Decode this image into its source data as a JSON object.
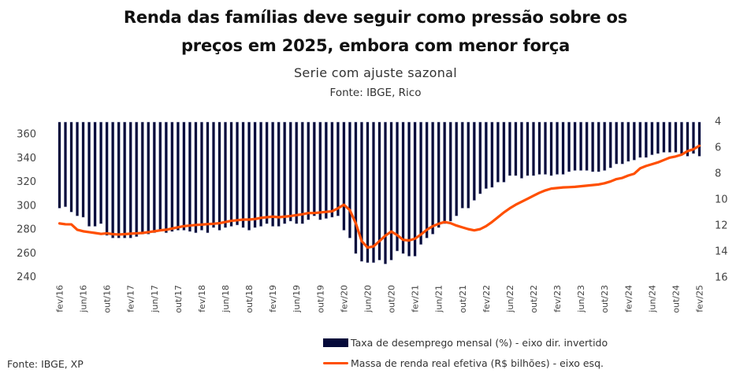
{
  "header": {
    "title_line1": "Renda das famílias deve seguir como pressão sobre os",
    "title_line2": "preços em 2025, embora com menor força",
    "subtitle": "Serie com ajuste sazonal",
    "source_top": "Fonte: IBGE, Rico"
  },
  "footer": {
    "source": "Fonte: IBGE, XP"
  },
  "colors": {
    "bars": "#050a3a",
    "line": "#ff4f00"
  },
  "chart_data": {
    "type": "bar+line",
    "title": "Renda das famílias deve seguir como pressão sobre os preços em 2025, embora com menor força",
    "subtitle": "Serie com ajuste sazonal",
    "x_start": "fev/16",
    "x_end": "fev/25",
    "frequency": "monthly",
    "xtick_labels": [
      "fev/16",
      "jun/16",
      "out/16",
      "fev/17",
      "jun/17",
      "out/17",
      "fev/18",
      "jun/18",
      "out/18",
      "fev/19",
      "jun/19",
      "out/19",
      "fev/20",
      "jun/20",
      "out/20",
      "fev/21",
      "jun/21",
      "out/21",
      "fev/22",
      "jun/22",
      "out/22",
      "fev/23",
      "jun/23",
      "out/23",
      "fev/24",
      "jun/24",
      "out/24",
      "fev/25"
    ],
    "y_left": {
      "ticks": [
        "240",
        "260",
        "280",
        "300",
        "320",
        "340",
        "360"
      ],
      "range": [
        240,
        360
      ]
    },
    "y_right": {
      "ticks": [
        "4",
        "6",
        "8",
        "10",
        "12",
        "14",
        "16"
      ],
      "range": [
        4,
        16
      ],
      "inverted": true
    },
    "legend_position": "bottom-center",
    "series": [
      {
        "name": "Taxa de desemprego mensal (%) - eixo dir. invertido",
        "type": "bar",
        "axis": "right",
        "values": [
          10.7,
          10.6,
          11.0,
          11.3,
          11.4,
          12.1,
          12.1,
          11.9,
          12.8,
          13.0,
          13.0,
          13.0,
          13.0,
          12.9,
          12.7,
          12.7,
          12.6,
          12.4,
          12.6,
          12.5,
          12.4,
          12.4,
          12.5,
          12.6,
          12.4,
          12.6,
          12.2,
          12.4,
          12.2,
          12.1,
          12.0,
          12.2,
          12.4,
          12.2,
          12.1,
          11.9,
          12.1,
          12.1,
          11.9,
          11.7,
          11.9,
          11.9,
          11.6,
          11.3,
          11.6,
          11.5,
          11.4,
          11.3,
          12.4,
          13.0,
          14.2,
          14.8,
          14.9,
          14.9,
          14.7,
          15.0,
          14.7,
          14.0,
          14.2,
          14.4,
          14.4,
          13.5,
          13.0,
          12.7,
          12.2,
          11.9,
          11.7,
          11.3,
          10.7,
          10.7,
          10.1,
          9.6,
          9.2,
          9.1,
          8.7,
          8.7,
          8.2,
          8.2,
          8.4,
          8.2,
          8.2,
          8.1,
          8.1,
          8.2,
          8.1,
          8.1,
          7.9,
          7.8,
          7.8,
          7.8,
          7.9,
          7.9,
          7.8,
          7.6,
          7.3,
          7.3,
          7.1,
          7.0,
          6.8,
          6.8,
          6.6,
          6.5,
          6.4,
          6.4,
          6.4,
          6.5,
          6.7,
          6.5,
          6.7
        ]
      },
      {
        "name": "Massa de renda real efetiva (R$ bilhões) - eixo esq.",
        "type": "line",
        "axis": "left",
        "values": [
          284.8,
          284.1,
          284.0,
          279.5,
          278.2,
          277.5,
          276.8,
          276.0,
          276.5,
          275.8,
          275.5,
          275.8,
          276.2,
          276.5,
          276.8,
          277.5,
          278.2,
          279.0,
          279.5,
          280.5,
          281.5,
          282.5,
          283.0,
          283.5,
          283.8,
          284.2,
          284.5,
          285.0,
          286.0,
          287.0,
          287.5,
          288.0,
          288.0,
          288.5,
          289.5,
          290.0,
          290.5,
          290.0,
          290.5,
          291.0,
          291.8,
          292.5,
          293.5,
          293.5,
          294.0,
          294.5,
          295.0,
          297.5,
          300.5,
          296.0,
          285.0,
          270.0,
          264.5,
          265.5,
          270.0,
          274.5,
          278.0,
          275.0,
          271.0,
          270.5,
          272.0,
          275.5,
          279.5,
          282.5,
          284.5,
          286.0,
          285.0,
          283.0,
          281.5,
          280.0,
          279.0,
          280.0,
          282.5,
          286.0,
          290.0,
          294.0,
          297.5,
          300.5,
          303.0,
          305.5,
          308.0,
          310.5,
          312.5,
          314.0,
          314.5,
          315.0,
          315.2,
          315.5,
          316.0,
          316.5,
          317.0,
          317.5,
          318.5,
          320.0,
          322.0,
          323.0,
          325.0,
          326.5,
          331.0,
          333.0,
          334.5,
          336.0,
          338.0,
          340.0,
          341.0,
          342.5,
          345.5,
          347.0,
          350.0
        ]
      }
    ]
  }
}
